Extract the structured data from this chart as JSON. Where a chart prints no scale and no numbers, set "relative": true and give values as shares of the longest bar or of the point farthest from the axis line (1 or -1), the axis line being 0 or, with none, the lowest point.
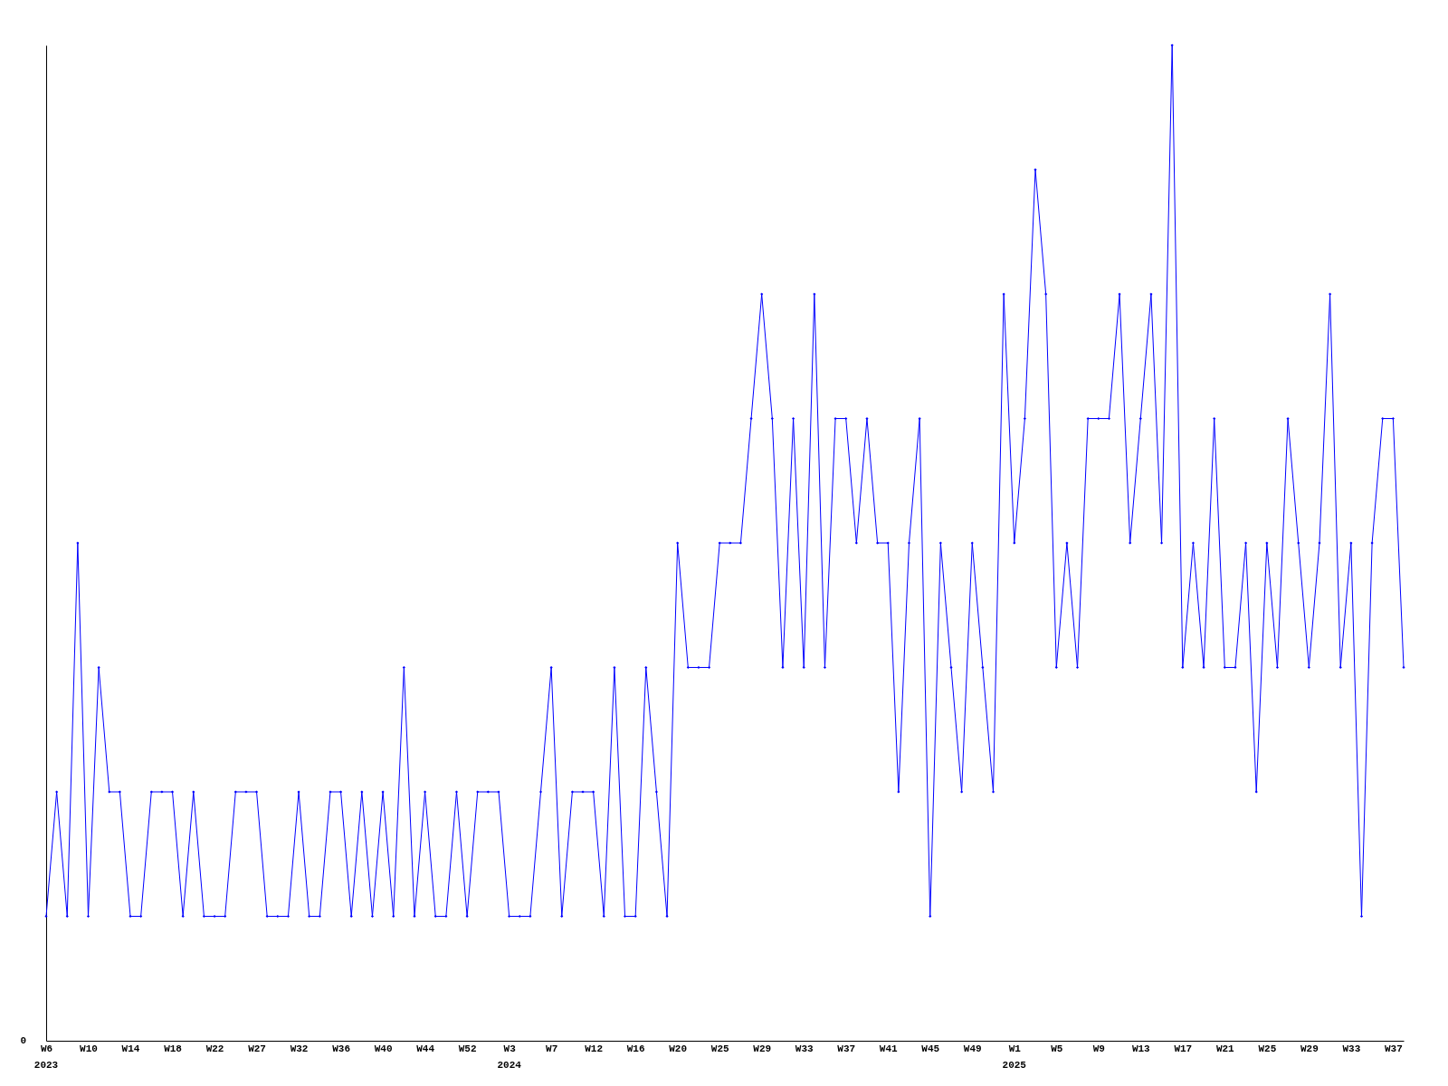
{
  "chart_data": {
    "type": "line",
    "relative": true,
    "marker": "diamond",
    "line_style": "solid",
    "categories": [
      "W6",
      null,
      null,
      null,
      "W10",
      null,
      null,
      null,
      "W14",
      null,
      null,
      null,
      "W18",
      null,
      null,
      null,
      "W22",
      null,
      null,
      null,
      "W27",
      null,
      null,
      null,
      "W32",
      null,
      null,
      null,
      "W36",
      null,
      null,
      null,
      "W40",
      null,
      null,
      null,
      "W44",
      null,
      null,
      null,
      "W52",
      null,
      null,
      null,
      "W3",
      null,
      null,
      null,
      "W7",
      null,
      null,
      null,
      "W12",
      null,
      null,
      null,
      "W16",
      null,
      null,
      null,
      "W20",
      null,
      null,
      null,
      "W25",
      null,
      null,
      null,
      "W29",
      null,
      null,
      null,
      "W33",
      null,
      null,
      null,
      "W37",
      null,
      null,
      null,
      "W41",
      null,
      null,
      null,
      "W45",
      null,
      null,
      null,
      "W49",
      null,
      null,
      null,
      "W1",
      null,
      null,
      null,
      "W5",
      null,
      null,
      null,
      "W9",
      null,
      null,
      null,
      "W13",
      null,
      null,
      null,
      "W17",
      null,
      null,
      null,
      "W21",
      null,
      null,
      null,
      "W25",
      null,
      null,
      null,
      "W29",
      null,
      null,
      null,
      "W33",
      null,
      null,
      null,
      "W37",
      null
    ],
    "series": [
      {
        "color": "#0000ff",
        "values": [
          0.125,
          0.25,
          0.125,
          0.5,
          0.125,
          0.375,
          0.25,
          0.25,
          0.125,
          0.125,
          0.25,
          0.25,
          0.25,
          0.125,
          0.25,
          0.125,
          0.125,
          0.125,
          0.25,
          0.25,
          0.25,
          0.125,
          0.125,
          0.125,
          0.25,
          0.125,
          0.125,
          0.25,
          0.25,
          0.125,
          0.25,
          0.125,
          0.25,
          0.125,
          0.375,
          0.125,
          0.25,
          0.125,
          0.125,
          0.25,
          0.125,
          0.25,
          0.25,
          0.25,
          0.125,
          0.125,
          0.125,
          0.25,
          0.375,
          0.125,
          0.25,
          0.25,
          0.25,
          0.125,
          0.375,
          0.125,
          0.125,
          0.375,
          0.25,
          0.125,
          0.5,
          0.375,
          0.375,
          0.375,
          0.5,
          0.5,
          0.5,
          0.625,
          0.75,
          0.625,
          0.375,
          0.625,
          0.375,
          0.75,
          0.375,
          0.625,
          0.625,
          0.5,
          0.625,
          0.5,
          0.5,
          0.25,
          0.5,
          0.625,
          0.125,
          0.5,
          0.375,
          0.25,
          0.5,
          0.375,
          0.25,
          0.75,
          0.5,
          0.625,
          0.875,
          0.75,
          0.375,
          0.5,
          0.375,
          0.625,
          0.625,
          0.625,
          0.75,
          0.5,
          0.625,
          0.75,
          0.5,
          1,
          0.375,
          0.5,
          0.375,
          0.625,
          0.375,
          0.375,
          0.5,
          0.25,
          0.5,
          0.375,
          0.625,
          0.5,
          0.375,
          0.5,
          0.75,
          0.375,
          0.5,
          0.125,
          0.5,
          0.625,
          0.625,
          0.375
        ]
      }
    ],
    "annotations": [
      "0",
      "2023",
      "2024",
      "2025"
    ]
  }
}
